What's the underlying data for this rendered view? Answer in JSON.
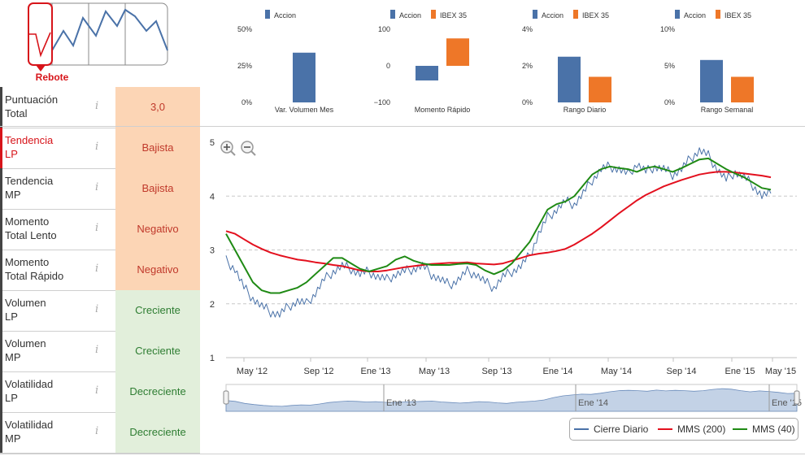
{
  "pattern": {
    "label": "Rebote",
    "color": "#d7141a"
  },
  "metrics": [
    {
      "label": "Puntuación\nTotal",
      "value": "3,0",
      "tone": "orange",
      "highlight": false
    },
    {
      "label": "Tendencia\nLP",
      "value": "Bajista",
      "tone": "orange",
      "highlight": true
    },
    {
      "label": "Tendencia\nMP",
      "value": "Bajista",
      "tone": "orange",
      "highlight": false
    },
    {
      "label": "Momento\nTotal Lento",
      "value": "Negativo",
      "tone": "orange",
      "highlight": false
    },
    {
      "label": "Momento\nTotal Rápido",
      "value": "Negativo",
      "tone": "orange",
      "highlight": false
    },
    {
      "label": "Volumen\nLP",
      "value": "Creciente",
      "tone": "green",
      "highlight": false
    },
    {
      "label": "Volumen\nMP",
      "value": "Creciente",
      "tone": "green",
      "highlight": false
    },
    {
      "label": "Volatilidad\nLP",
      "value": "Decreciente",
      "tone": "green",
      "highlight": false
    },
    {
      "label": "Volatilidad\nMP",
      "value": "Decreciente",
      "tone": "green",
      "highlight": false
    }
  ],
  "info_glyph": "i",
  "chart_data": [
    {
      "type": "bar",
      "categories": [
        "Var. Volumen Mes"
      ],
      "series": [
        {
          "name": "Accion",
          "values": [
            34
          ],
          "color": "#4a72a8"
        }
      ],
      "yticks": [
        "50%",
        "25%",
        "0%"
      ],
      "ylim": [
        0,
        50
      ]
    },
    {
      "type": "bar",
      "categories": [
        "Momento Rápido"
      ],
      "series": [
        {
          "name": "Accion",
          "values": [
            -40
          ],
          "color": "#4a72a8"
        },
        {
          "name": "IBEX 35",
          "values": [
            75
          ],
          "color": "#ee7728"
        }
      ],
      "yticks": [
        "100",
        "0",
        "−100"
      ],
      "ylim": [
        -100,
        100
      ]
    },
    {
      "type": "bar",
      "categories": [
        "Rango Diario"
      ],
      "series": [
        {
          "name": "Accion",
          "values": [
            2.5
          ],
          "color": "#4a72a8"
        },
        {
          "name": "IBEX 35",
          "values": [
            1.4
          ],
          "color": "#ee7728"
        }
      ],
      "yticks": [
        "4%",
        "2%",
        "0%"
      ],
      "ylim": [
        0,
        4
      ]
    },
    {
      "type": "bar",
      "categories": [
        "Rango Semanal"
      ],
      "series": [
        {
          "name": "Accion",
          "values": [
            5.8
          ],
          "color": "#4a72a8"
        },
        {
          "name": "IBEX 35",
          "values": [
            3.5
          ],
          "color": "#ee7728"
        }
      ],
      "yticks": [
        "10%",
        "5%",
        "0%"
      ],
      "ylim": [
        0,
        10
      ]
    },
    {
      "type": "line",
      "x_labels": [
        "May '12",
        "Sep '12",
        "Ene '13",
        "May '13",
        "Sep '13",
        "Ene '14",
        "May '14",
        "Sep '14",
        "Ene '15",
        "May '15"
      ],
      "yticks": [
        "5",
        "4",
        "3",
        "2",
        "1"
      ],
      "ylim": [
        1,
        5
      ],
      "grid": true,
      "legend": "bottom-right",
      "series": [
        {
          "name": "Cierre Diario",
          "color": "#4a72a8",
          "values": [
            2.8,
            2.65,
            2.3,
            2.1,
            1.95,
            1.85,
            1.8,
            1.95,
            2.05,
            2.0,
            2.2,
            2.45,
            2.6,
            2.7,
            2.65,
            2.55,
            2.6,
            2.5,
            2.45,
            2.55,
            2.6,
            2.65,
            2.7,
            2.55,
            2.45,
            2.35,
            2.45,
            2.6,
            2.55,
            2.4,
            2.3,
            2.5,
            2.6,
            2.7,
            2.9,
            3.3,
            3.6,
            3.75,
            3.9,
            3.85,
            4.05,
            4.3,
            4.5,
            4.55,
            4.5,
            4.4,
            4.6,
            4.45,
            4.55,
            4.5,
            4.4,
            4.5,
            4.7,
            4.85,
            4.75,
            4.5,
            4.3,
            4.45,
            4.35,
            4.2,
            4.0,
            4.05
          ]
        },
        {
          "name": "MMS (200)",
          "color": "#e3101e",
          "values": [
            3.35,
            3.3,
            3.2,
            3.1,
            3.02,
            2.95,
            2.9,
            2.86,
            2.82,
            2.8,
            2.77,
            2.75,
            2.72,
            2.7,
            2.66,
            2.62,
            2.6,
            2.6,
            2.62,
            2.65,
            2.68,
            2.7,
            2.72,
            2.74,
            2.75,
            2.76,
            2.76,
            2.77,
            2.75,
            2.74,
            2.73,
            2.75,
            2.8,
            2.85,
            2.9,
            2.93,
            2.95,
            2.98,
            3.02,
            3.1,
            3.2,
            3.3,
            3.42,
            3.55,
            3.68,
            3.8,
            3.92,
            4.02,
            4.1,
            4.18,
            4.24,
            4.3,
            4.35,
            4.4,
            4.43,
            4.45,
            4.45,
            4.44,
            4.42,
            4.4,
            4.38,
            4.35
          ]
        },
        {
          "name": "MMS (40)",
          "color": "#1f8a14",
          "values": [
            3.3,
            3.0,
            2.7,
            2.4,
            2.25,
            2.2,
            2.2,
            2.25,
            2.3,
            2.4,
            2.55,
            2.7,
            2.85,
            2.85,
            2.75,
            2.65,
            2.6,
            2.65,
            2.7,
            2.82,
            2.88,
            2.8,
            2.75,
            2.72,
            2.72,
            2.72,
            2.74,
            2.75,
            2.72,
            2.62,
            2.55,
            2.62,
            2.75,
            2.95,
            3.15,
            3.45,
            3.75,
            3.85,
            3.9,
            4.0,
            4.2,
            4.4,
            4.5,
            4.55,
            4.52,
            4.5,
            4.45,
            4.52,
            4.55,
            4.5,
            4.45,
            4.52,
            4.6,
            4.68,
            4.7,
            4.6,
            4.5,
            4.42,
            4.35,
            4.25,
            4.15,
            4.12
          ]
        }
      ]
    }
  ],
  "navigator": {
    "labels": [
      "Ene '13",
      "Ene '14",
      "Ene '15"
    ]
  },
  "legend_items": [
    "Cierre Diario",
    "MMS (200)",
    "MMS (40)"
  ]
}
